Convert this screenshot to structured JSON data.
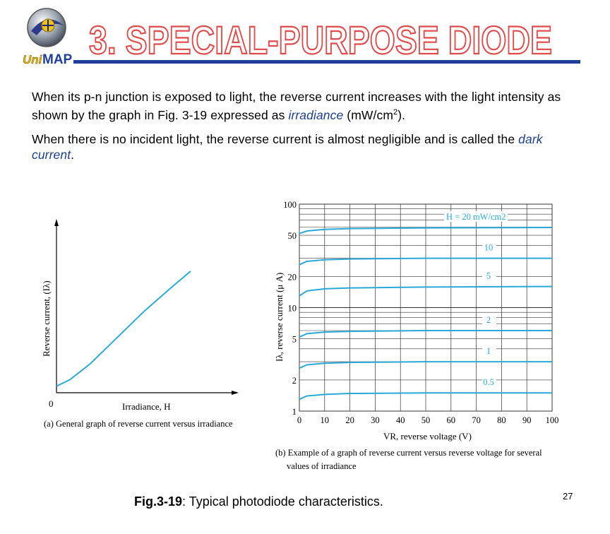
{
  "header": {
    "title": "3. SPECIAL-PURPOSE DIODE",
    "logo_text_a": "Uni",
    "logo_text_b": "MAP"
  },
  "paragraph1": {
    "text_a": "When its p-n junction is exposed to light, the reverse current increases with the light intensity as shown by the graph in Fig. 3-19 expressed as ",
    "term": "irradiance",
    "text_b": " (mW/cm",
    "sup": "2",
    "text_c": ")."
  },
  "paragraph2": {
    "text_a": "When there is no incident light, the reverse current is almost negligible and is called the ",
    "term": "dark current",
    "text_b": "."
  },
  "figure": {
    "caption_bold": "Fig.3-19",
    "caption_rest": ":  Typical photodiode characteristics.",
    "page_number": "27"
  },
  "chart_data": [
    {
      "type": "line",
      "subtitle": "(a) General graph of reverse current versus irradiance",
      "xlabel": "Irradiance, H",
      "ylabel": "Reverse current, (Iλ)",
      "origin_label": "0",
      "series": [
        {
          "points": [
            [
              0,
              0.05
            ],
            [
              0.1,
              0.1
            ],
            [
              0.25,
              0.22
            ],
            [
              0.45,
              0.42
            ],
            [
              0.65,
              0.62
            ],
            [
              0.85,
              0.8
            ],
            [
              1.0,
              0.93
            ]
          ]
        }
      ],
      "color": "#2aa9d8",
      "grid": false
    },
    {
      "type": "line",
      "subtitle_a": "(b) Example of a graph of reverse current versus reverse voltage for several",
      "subtitle_b": "values of irradiance",
      "xlabel": "VR, reverse voltage (V)",
      "ylabel": "Iλ, reverse current (μ A)",
      "y_scale": "log",
      "ylim": [
        1,
        100
      ],
      "xlim": [
        0,
        100
      ],
      "x_ticks": [
        "0",
        "10",
        "20",
        "30",
        "40",
        "50",
        "60",
        "70",
        "80",
        "90",
        "100"
      ],
      "y_ticks": [
        "100",
        "50",
        "20",
        "10",
        "5",
        "2",
        "1"
      ],
      "grid": true,
      "color": "#2aa9d8",
      "series": [
        {
          "name": "H = 20 mW/cm2",
          "values": [
            [
              0,
              52
            ],
            [
              3,
              55
            ],
            [
              10,
              57
            ],
            [
              20,
              58
            ],
            [
              50,
              59
            ],
            [
              100,
              59.5
            ]
          ]
        },
        {
          "name": "10",
          "values": [
            [
              0,
              26
            ],
            [
              3,
              28
            ],
            [
              10,
              29
            ],
            [
              20,
              29.5
            ],
            [
              50,
              30
            ],
            [
              100,
              30
            ]
          ]
        },
        {
          "name": "5",
          "values": [
            [
              0,
              13
            ],
            [
              3,
              14.5
            ],
            [
              10,
              15.2
            ],
            [
              20,
              15.5
            ],
            [
              50,
              15.8
            ],
            [
              100,
              16
            ]
          ]
        },
        {
          "name": "2",
          "values": [
            [
              0,
              5.2
            ],
            [
              3,
              5.6
            ],
            [
              10,
              5.8
            ],
            [
              20,
              5.9
            ],
            [
              50,
              6
            ],
            [
              100,
              6
            ]
          ]
        },
        {
          "name": "1",
          "values": [
            [
              0,
              2.6
            ],
            [
              3,
              2.8
            ],
            [
              10,
              2.9
            ],
            [
              20,
              2.95
            ],
            [
              50,
              3
            ],
            [
              100,
              3
            ]
          ]
        },
        {
          "name": "0.5",
          "values": [
            [
              0,
              1.3
            ],
            [
              3,
              1.4
            ],
            [
              10,
              1.45
            ],
            [
              20,
              1.48
            ],
            [
              50,
              1.5
            ],
            [
              100,
              1.5
            ]
          ]
        }
      ]
    }
  ]
}
